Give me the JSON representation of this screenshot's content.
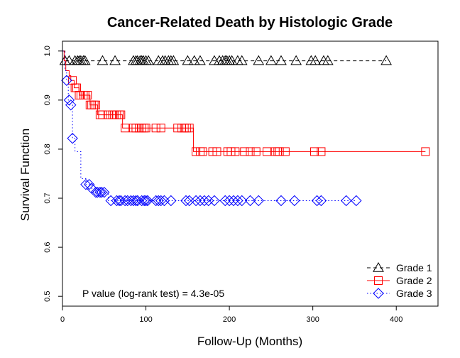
{
  "chart_data": {
    "type": "line",
    "subtype": "kaplan-meier-step",
    "title": "Cancer-Related Death by Histologic Grade",
    "xlabel": "Follow-Up (Months)",
    "ylabel": "Survival Function",
    "xlim": [
      0,
      450
    ],
    "ylim": [
      0.48,
      1.02
    ],
    "xticks": [
      0,
      100,
      200,
      300,
      400
    ],
    "yticks": [
      0.5,
      0.6,
      0.7,
      0.8,
      0.9,
      1.0
    ],
    "xtick_labels": [
      "0",
      "100",
      "200",
      "300",
      "400"
    ],
    "ytick_labels": [
      "0.5",
      "0.6",
      "0.7",
      "0.8",
      "0.9",
      "1.0"
    ],
    "grid": false,
    "legend_position": "bottom-right",
    "annotation": "P value (log-rank test) = 4.3e-05",
    "series": [
      {
        "name": "Grade 1",
        "color": "#000000",
        "marker": "triangle",
        "line_style": "dashed",
        "steps": [
          [
            0,
            1.0
          ],
          [
            3,
            0.98
          ],
          [
            388,
            0.98
          ]
        ],
        "censor_x": [
          3,
          8,
          15,
          18,
          20,
          22,
          25,
          27,
          48,
          63,
          85,
          88,
          90,
          93,
          95,
          97,
          100,
          103,
          115,
          120,
          123,
          127,
          130,
          133,
          150,
          158,
          165,
          182,
          188,
          192,
          195,
          197,
          200,
          203,
          210,
          215,
          235,
          250,
          262,
          280,
          298,
          303,
          313,
          318,
          388
        ]
      },
      {
        "name": "Grade 2",
        "color": "#ff0000",
        "marker": "square",
        "line_style": "solid",
        "steps": [
          [
            0,
            1.0
          ],
          [
            2,
            0.98
          ],
          [
            4,
            0.96
          ],
          [
            8,
            0.95
          ],
          [
            10,
            0.94
          ],
          [
            14,
            0.925
          ],
          [
            20,
            0.91
          ],
          [
            33,
            0.89
          ],
          [
            42,
            0.87
          ],
          [
            72,
            0.843
          ],
          [
            157,
            0.795
          ],
          [
            435,
            0.795
          ]
        ],
        "censor_x": [
          12,
          15,
          17,
          20,
          22,
          25,
          27,
          30,
          33,
          35,
          38,
          40,
          45,
          48,
          55,
          60,
          62,
          65,
          68,
          70,
          75,
          85,
          88,
          92,
          95,
          98,
          100,
          112,
          118,
          138,
          143,
          146,
          149,
          152,
          160,
          165,
          168,
          180,
          185,
          198,
          202,
          207,
          218,
          225,
          232,
          245,
          255,
          258,
          260,
          267,
          302,
          310,
          435
        ]
      },
      {
        "name": "Grade 3",
        "color": "#0000ff",
        "marker": "diamond",
        "line_style": "dotted",
        "steps": [
          [
            0,
            1.0
          ],
          [
            3,
            0.96
          ],
          [
            5,
            0.94
          ],
          [
            7,
            0.9
          ],
          [
            9,
            0.89
          ],
          [
            12,
            0.822
          ],
          [
            15,
            0.795
          ],
          [
            22,
            0.74
          ],
          [
            28,
            0.728
          ],
          [
            35,
            0.72
          ],
          [
            40,
            0.712
          ],
          [
            55,
            0.695
          ],
          [
            352,
            0.695
          ]
        ],
        "censor_x": [
          5,
          8,
          10,
          12,
          28,
          32,
          35,
          40,
          42,
          45,
          47,
          50,
          58,
          65,
          68,
          70,
          75,
          78,
          82,
          85,
          88,
          90,
          95,
          98,
          100,
          102,
          112,
          115,
          118,
          122,
          130,
          148,
          152,
          160,
          165,
          170,
          175,
          182,
          195,
          200,
          205,
          210,
          215,
          225,
          235,
          262,
          278,
          305,
          310,
          340,
          352
        ]
      }
    ]
  }
}
